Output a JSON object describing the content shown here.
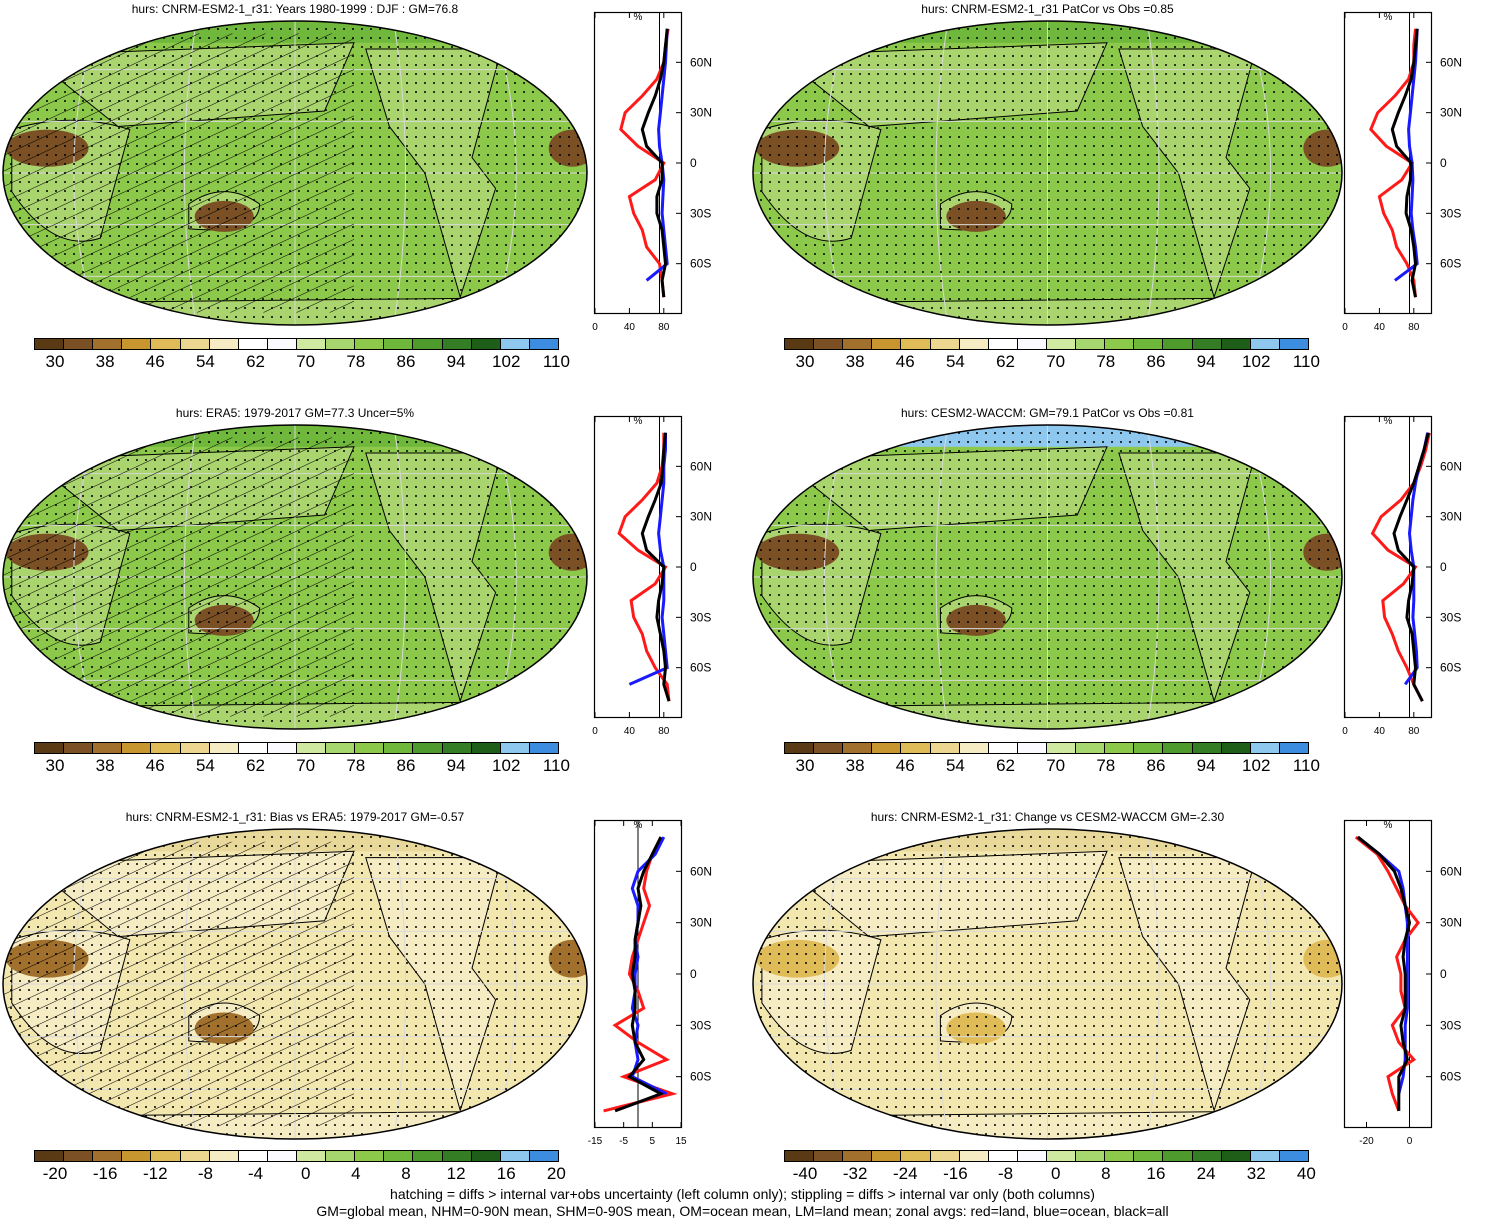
{
  "panels": [
    {
      "title": "hurs: CNRM-ESM2-1_r31: Years 1980-1999 : DJF : GM=76.8",
      "kind": "abs",
      "hatch": true,
      "fill": "#8cc94a",
      "cb": "abs"
    },
    {
      "title": "hurs: CNRM-ESM2-1_r31 PatCor vs Obs =0.85",
      "kind": "abs",
      "hatch": false,
      "fill": "#8cc94a",
      "cb": "abs"
    },
    {
      "title": "hurs: ERA5: 1979-2017 GM=77.3 Uncer=5%",
      "kind": "abs",
      "hatch": true,
      "fill": "#8cc94a",
      "cb": "abs"
    },
    {
      "title": "hurs: CESM2-WACCM: GM=79.1 PatCor vs Obs =0.81",
      "kind": "abs",
      "hatch": false,
      "fill": "#8cc94a",
      "cb": "abs"
    },
    {
      "title": "hurs: CNRM-ESM2-1_r31: Bias vs ERA5: 1979-2017 GM=-0.57",
      "kind": "bias",
      "hatch": true,
      "fill": "#f3e7b0",
      "cb": "bias"
    },
    {
      "title": "hurs: CNRM-ESM2-1_r31: Change vs CESM2-WACCM GM=-2.30",
      "kind": "change",
      "hatch": false,
      "fill": "#f3e7b0",
      "cb": "change"
    }
  ],
  "colorbars": {
    "abs": [
      "30",
      "38",
      "46",
      "54",
      "62",
      "70",
      "78",
      "86",
      "94",
      "102",
      "110"
    ],
    "bias": [
      "-20",
      "-16",
      "-12",
      "-8",
      "-4",
      "0",
      "4",
      "8",
      "12",
      "16",
      "20"
    ],
    "change": [
      "-40",
      "-32",
      "-24",
      "-16",
      "-8",
      "0",
      "8",
      "16",
      "24",
      "32",
      "40"
    ]
  },
  "colors": [
    "#5a3a14",
    "#7a5024",
    "#a0702c",
    "#c8962e",
    "#e0bc58",
    "#ecd690",
    "#f6ecc4",
    "#ffffff",
    "#fbfbff",
    "#cfe9a0",
    "#a6d66e",
    "#8cc94a",
    "#70b83c",
    "#4f9a2c",
    "#357d24",
    "#1e5e18",
    "#8ec8ee",
    "#3c8ce0"
  ],
  "zonal_unit": "%",
  "lat_labels": [
    "60N",
    "30N",
    "0",
    "30S",
    "60S"
  ],
  "zonal_ticks": {
    "abs": [
      "0",
      "40",
      "80"
    ],
    "bias": [
      "-15",
      "-5",
      "5",
      "15"
    ],
    "change": [
      "-20",
      "0"
    ]
  },
  "footnote": {
    "line1": "hatching = diffs > internal var+obs uncertainty (left column only); stippling = diffs > internal var only (both columns)",
    "line2": "GM=global mean, NHM=0-90N mean, SHM=0-90S mean, OM=ocean mean, LM=land mean; zonal avgs: red=land, blue=ocean, black=all"
  },
  "chart_data": [
    {
      "type": "heatmap",
      "title": "hurs: CNRM-ESM2-1_r31: Years 1980-1999 : DJF : GM=76.8",
      "colorbar": [
        30,
        38,
        46,
        54,
        62,
        70,
        78,
        86,
        94,
        102,
        110
      ],
      "zonal": {
        "unit": "%",
        "lat": [
          80,
          70,
          60,
          50,
          40,
          30,
          20,
          10,
          0,
          -10,
          -20,
          -30,
          -40,
          -50,
          -60,
          -70,
          -80
        ],
        "land": [
          85,
          82,
          80,
          72,
          55,
          35,
          30,
          50,
          80,
          70,
          40,
          45,
          55,
          60,
          75,
          78,
          80
        ],
        "ocean": [
          84,
          83,
          82,
          80,
          78,
          76,
          74,
          75,
          78,
          80,
          79,
          78,
          80,
          82,
          84,
          60,
          null
        ],
        "all": [
          84,
          82,
          80,
          76,
          70,
          62,
          55,
          60,
          78,
          78,
          72,
          72,
          78,
          80,
          82,
          78,
          80
        ]
      }
    },
    {
      "type": "heatmap",
      "title": "hurs: CNRM-ESM2-1_r31 PatCor vs Obs =0.85",
      "colorbar": [
        30,
        38,
        46,
        54,
        62,
        70,
        78,
        86,
        94,
        102,
        110
      ],
      "zonal": {
        "unit": "%",
        "lat": [
          80,
          70,
          60,
          50,
          40,
          30,
          20,
          10,
          0,
          -10,
          -20,
          -30,
          -40,
          -50,
          -60,
          -70,
          -80
        ],
        "land": [
          82,
          80,
          80,
          74,
          58,
          38,
          30,
          48,
          78,
          66,
          40,
          45,
          55,
          60,
          72,
          80,
          82
        ],
        "ocean": [
          84,
          83,
          82,
          80,
          78,
          76,
          74,
          75,
          78,
          79,
          78,
          77,
          79,
          82,
          84,
          58,
          null
        ],
        "all": [
          84,
          82,
          80,
          77,
          70,
          62,
          55,
          60,
          77,
          76,
          72,
          71,
          77,
          80,
          82,
          78,
          82
        ]
      }
    },
    {
      "type": "heatmap",
      "title": "hurs: ERA5: 1979-2017 GM=77.3 Uncer=5%",
      "colorbar": [
        30,
        38,
        46,
        54,
        62,
        70,
        78,
        86,
        94,
        102,
        110
      ],
      "zonal": {
        "unit": "%",
        "lat": [
          80,
          70,
          60,
          50,
          40,
          30,
          20,
          10,
          0,
          -10,
          -20,
          -30,
          -40,
          -50,
          -60,
          -70,
          -80
        ],
        "land": [
          80,
          80,
          78,
          72,
          55,
          35,
          28,
          50,
          82,
          70,
          42,
          45,
          55,
          60,
          70,
          84,
          86
        ],
        "ocean": [
          82,
          82,
          80,
          80,
          78,
          76,
          74,
          76,
          80,
          80,
          80,
          78,
          80,
          82,
          84,
          40,
          null
        ],
        "all": [
          82,
          80,
          79,
          77,
          70,
          62,
          55,
          60,
          80,
          78,
          74,
          72,
          76,
          80,
          82,
          80,
          86
        ]
      }
    },
    {
      "type": "heatmap",
      "title": "hurs: CESM2-WACCM: GM=79.1 PatCor vs Obs =0.81",
      "colorbar": [
        30,
        38,
        46,
        54,
        62,
        70,
        78,
        86,
        94,
        102,
        110
      ],
      "zonal": {
        "unit": "%",
        "lat": [
          80,
          70,
          60,
          50,
          40,
          30,
          20,
          10,
          0,
          -10,
          -20,
          -30,
          -40,
          -50,
          -60,
          -70,
          -80
        ],
        "land": [
          98,
          94,
          88,
          80,
          65,
          42,
          32,
          50,
          82,
          68,
          44,
          46,
          55,
          62,
          72,
          80,
          90
        ],
        "ocean": [
          96,
          92,
          86,
          82,
          79,
          77,
          75,
          77,
          80,
          80,
          80,
          79,
          81,
          83,
          84,
          70,
          null
        ],
        "all": [
          97,
          92,
          86,
          80,
          72,
          64,
          57,
          62,
          80,
          78,
          74,
          72,
          78,
          80,
          82,
          80,
          90
        ]
      }
    },
    {
      "type": "heatmap",
      "title": "hurs: CNRM-ESM2-1_r31: Bias vs ERA5: 1979-2017 GM=-0.57",
      "colorbar": [
        -20,
        -16,
        -12,
        -8,
        -4,
        0,
        4,
        8,
        12,
        16,
        20
      ],
      "zonal": {
        "unit": "%",
        "lat": [
          80,
          70,
          60,
          50,
          40,
          30,
          20,
          10,
          0,
          -10,
          -20,
          -30,
          -40,
          -50,
          -60,
          -70,
          -80
        ],
        "land": [
          8,
          5,
          3,
          2,
          4,
          2,
          0,
          -2,
          -3,
          0,
          2,
          -8,
          0,
          10,
          -5,
          12,
          -12
        ],
        "ocean": [
          9,
          6,
          0,
          -2,
          0,
          0,
          -1,
          0,
          -1,
          -1,
          -2,
          0,
          -1,
          0,
          -2,
          10,
          null
        ],
        "all": [
          8,
          5,
          2,
          0,
          1,
          0,
          -1,
          -1,
          -2,
          -1,
          -1,
          -2,
          -1,
          2,
          -3,
          8,
          -8
        ]
      }
    },
    {
      "type": "heatmap",
      "title": "hurs: CNRM-ESM2-1_r31: Change vs CESM2-WACCM GM=-2.30",
      "colorbar": [
        -40,
        -32,
        -24,
        -16,
        -8,
        0,
        8,
        16,
        24,
        32,
        40
      ],
      "zonal": {
        "unit": "%",
        "lat": [
          80,
          70,
          60,
          50,
          40,
          30,
          20,
          10,
          0,
          -10,
          -20,
          -30,
          -40,
          -50,
          -60,
          -70,
          -80
        ],
        "land": [
          -25,
          -15,
          -10,
          -6,
          -2,
          4,
          -2,
          -6,
          -4,
          -4,
          -2,
          -8,
          -5,
          2,
          -10,
          -8,
          -5
        ],
        "ocean": [
          -24,
          -14,
          -5,
          -3,
          -2,
          -1,
          -1,
          -1,
          -1,
          -1,
          -1,
          -2,
          -2,
          -2,
          -3,
          -5,
          null
        ],
        "all": [
          -24,
          -14,
          -7,
          -4,
          -2,
          0,
          -2,
          -3,
          -2,
          -2,
          -2,
          -4,
          -3,
          -1,
          -5,
          -5,
          -5
        ]
      }
    }
  ]
}
